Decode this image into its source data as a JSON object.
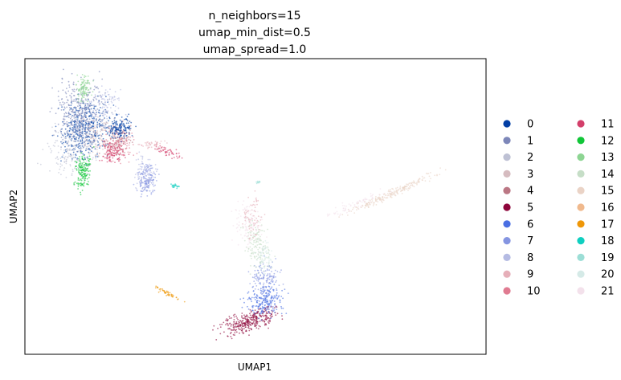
{
  "chart_data": {
    "type": "scatter",
    "title": [
      "n_neighbors=15",
      "umap_min_dist=0.5",
      "umap_spread=1.0"
    ],
    "xlabel": "UMAP1",
    "ylabel": "UMAP2",
    "xticks": false,
    "yticks": false,
    "grid": false,
    "legend": {
      "placement": "right",
      "columns": 2,
      "entries": [
        {
          "label": "0",
          "color": "#023fa5"
        },
        {
          "label": "1",
          "color": "#7d87b9"
        },
        {
          "label": "2",
          "color": "#bec1d4"
        },
        {
          "label": "3",
          "color": "#d6bcc0"
        },
        {
          "label": "4",
          "color": "#bb7784"
        },
        {
          "label": "5",
          "color": "#8e063b"
        },
        {
          "label": "6",
          "color": "#4a6fe3"
        },
        {
          "label": "7",
          "color": "#8595e1"
        },
        {
          "label": "8",
          "color": "#b5bbe3"
        },
        {
          "label": "9",
          "color": "#e6afb9"
        },
        {
          "label": "10",
          "color": "#e07b91"
        },
        {
          "label": "11",
          "color": "#d33f6a"
        },
        {
          "label": "12",
          "color": "#11c638"
        },
        {
          "label": "13",
          "color": "#8dd593"
        },
        {
          "label": "14",
          "color": "#c6dec7"
        },
        {
          "label": "15",
          "color": "#ead3c6"
        },
        {
          "label": "16",
          "color": "#f0b98d"
        },
        {
          "label": "17",
          "color": "#ef9708"
        },
        {
          "label": "18",
          "color": "#0fcfc0"
        },
        {
          "label": "19",
          "color": "#9cded6"
        },
        {
          "label": "20",
          "color": "#d5eae7"
        },
        {
          "label": "21",
          "color": "#f3e1eb"
        }
      ]
    }
  }
}
